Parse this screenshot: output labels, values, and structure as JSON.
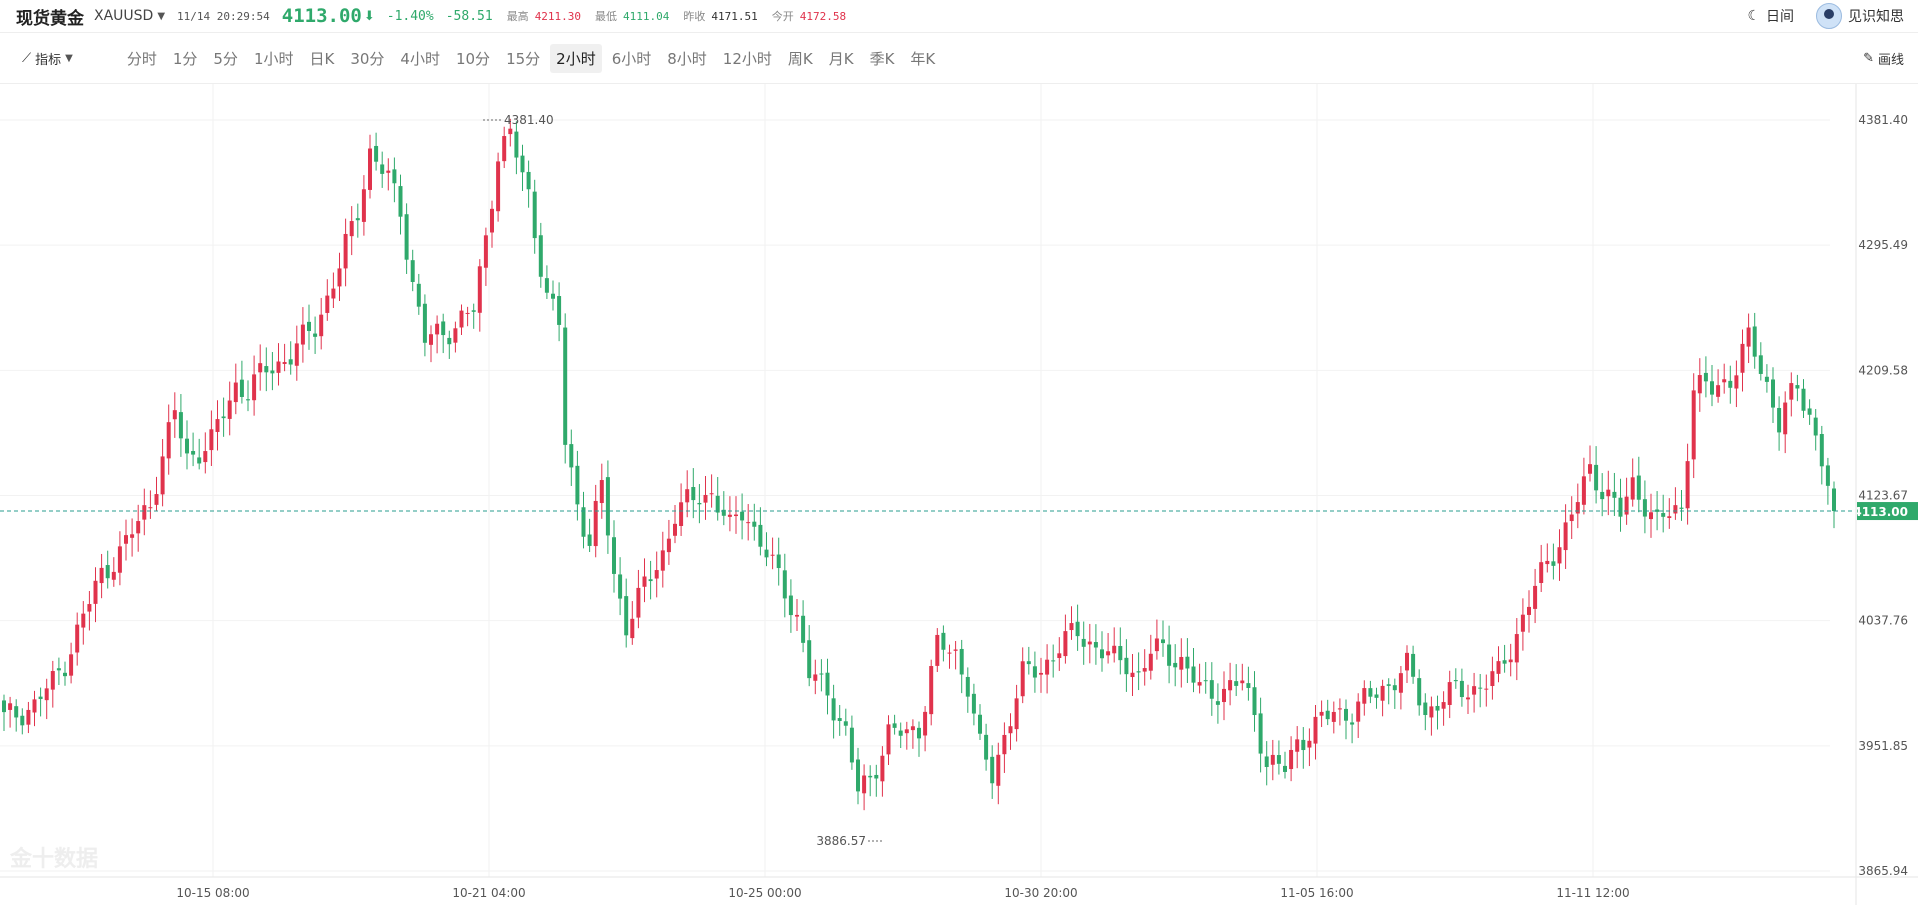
{
  "header": {
    "title": "现货黄金",
    "symbol": "XAUUSD",
    "datetime": "11/14 20:29:54",
    "price": "4113.00",
    "change_pct": "-1.40%",
    "change": "-58.51",
    "high_label": "最高",
    "high": "4211.30",
    "low_label": "最低",
    "low": "4111.04",
    "prev_close_label": "昨收",
    "prev_close": "4171.51",
    "open_label": "今开",
    "open": "4172.58",
    "theme_label": "日间",
    "user_name": "见识知思"
  },
  "toolbar": {
    "indicator_label": "指标",
    "periods": [
      "分时",
      "1分",
      "5分",
      "1小时",
      "日K",
      "30分",
      "4小时",
      "10分",
      "15分",
      "2小时",
      "6小时",
      "8小时",
      "12小时",
      "周K",
      "月K",
      "季K",
      "年K"
    ],
    "active_period": "2小时",
    "draw_label": "画线"
  },
  "colors": {
    "up": "#e0334c",
    "down": "#2fa96b",
    "grid": "#f2f2f2",
    "last_line": "#2a9d8f"
  },
  "watermark": "金十数据",
  "chart_data": {
    "type": "candlestick",
    "y_ticks": [
      "4381.40",
      "4295.49",
      "4209.58",
      "4123.67",
      "4037.76",
      "3951.85",
      "3865.94"
    ],
    "ylim": [
      3865.94,
      4381.4
    ],
    "x_ticks": [
      "10-15 08:00",
      "10-21 04:00",
      "10-25 00:00",
      "10-30 20:00",
      "11-05 16:00",
      "11-11 12:00"
    ],
    "last_price": "4113.00",
    "max_label": "4381.40",
    "min_label": "3886.57",
    "anchors": [
      [
        3970,
        0
      ],
      [
        3980,
        5
      ],
      [
        3995,
        8
      ],
      [
        4010,
        10
      ],
      [
        4040,
        13
      ],
      [
        4070,
        16
      ],
      [
        4090,
        20
      ],
      [
        4120,
        24
      ],
      [
        4180,
        28
      ],
      [
        4150,
        30
      ],
      [
        4160,
        34
      ],
      [
        4200,
        38
      ],
      [
        4195,
        40
      ],
      [
        4210,
        43
      ],
      [
        4220,
        47
      ],
      [
        4240,
        51
      ],
      [
        4280,
        55
      ],
      [
        4320,
        58
      ],
      [
        4360,
        60
      ],
      [
        4340,
        63
      ],
      [
        4320,
        65
      ],
      [
        4270,
        67
      ],
      [
        4230,
        69
      ],
      [
        4235,
        72
      ],
      [
        4245,
        75
      ],
      [
        4250,
        77
      ],
      [
        4300,
        79
      ],
      [
        4360,
        81
      ],
      [
        4370,
        83
      ],
      [
        4330,
        86
      ],
      [
        4260,
        89
      ],
      [
        4240,
        91
      ],
      [
        4160,
        92
      ],
      [
        4120,
        94
      ],
      [
        4090,
        96
      ],
      [
        4130,
        98
      ],
      [
        4070,
        100
      ],
      [
        4035,
        102
      ],
      [
        4060,
        105
      ],
      [
        4085,
        108
      ],
      [
        4110,
        110
      ],
      [
        4125,
        114
      ],
      [
        4125,
        116
      ],
      [
        4100,
        119
      ],
      [
        4115,
        121
      ],
      [
        4110,
        122
      ],
      [
        4090,
        124
      ],
      [
        4075,
        126
      ],
      [
        4060,
        128
      ],
      [
        4040,
        130
      ],
      [
        4000,
        132
      ],
      [
        3990,
        135
      ],
      [
        3960,
        138
      ],
      [
        3920,
        140
      ],
      [
        3930,
        142
      ],
      [
        3960,
        145
      ],
      [
        3960,
        148
      ],
      [
        3965,
        150
      ],
      [
        4020,
        153
      ],
      [
        4015,
        156
      ],
      [
        3995,
        158
      ],
      [
        3950,
        160
      ],
      [
        3930,
        162
      ],
      [
        3960,
        164
      ],
      [
        4000,
        167
      ],
      [
        4005,
        170
      ],
      [
        4020,
        173
      ],
      [
        4030,
        176
      ],
      [
        4020,
        179
      ],
      [
        4010,
        182
      ],
      [
        4010,
        184
      ],
      [
        4000,
        186
      ],
      [
        4015,
        188
      ],
      [
        4018,
        190
      ],
      [
        4010,
        193
      ],
      [
        3990,
        196
      ],
      [
        3990,
        200
      ],
      [
        3995,
        203
      ],
      [
        3975,
        205
      ],
      [
        3940,
        207
      ],
      [
        3935,
        210
      ],
      [
        3955,
        212
      ],
      [
        3965,
        215
      ],
      [
        3975,
        218
      ],
      [
        3975,
        221
      ],
      [
        3985,
        224
      ],
      [
        3995,
        227
      ],
      [
        4005,
        230
      ],
      [
        3975,
        233
      ],
      [
        3985,
        236
      ],
      [
        3990,
        239
      ],
      [
        3993,
        242
      ],
      [
        4000,
        245
      ],
      [
        4030,
        248
      ],
      [
        4060,
        251
      ],
      [
        4085,
        254
      ],
      [
        4110,
        257
      ],
      [
        4140,
        260
      ],
      [
        4125,
        263
      ],
      [
        4110,
        265
      ],
      [
        4130,
        267
      ],
      [
        4120,
        269
      ],
      [
        4105,
        271
      ],
      [
        4110,
        273
      ],
      [
        4115,
        275
      ],
      [
        4200,
        277
      ],
      [
        4195,
        280
      ],
      [
        4205,
        283
      ],
      [
        4230,
        286
      ],
      [
        4210,
        288
      ],
      [
        4200,
        289
      ],
      [
        4175,
        291
      ],
      [
        4185,
        292
      ],
      [
        4195,
        294
      ],
      [
        4180,
        296
      ],
      [
        4150,
        298
      ],
      [
        4113,
        300
      ]
    ]
  }
}
